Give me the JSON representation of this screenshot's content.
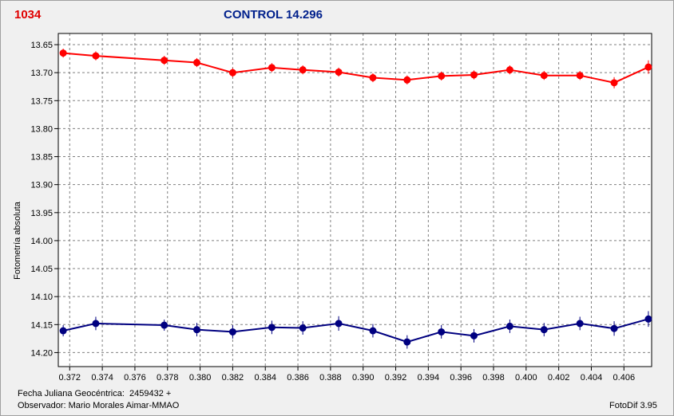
{
  "header": {
    "object_id": "1034",
    "title": "CONTROL 14.296"
  },
  "footer": {
    "julian_date_label": "Fecha Juliana Geocéntrica:  2459432 +",
    "observer_label": "Observador: Mario Morales Aimar-MMAO",
    "software": "FotoDif 3.95"
  },
  "colors": {
    "series_red": "#ff0000",
    "series_blue": "#000080",
    "object_id": "#e00000",
    "title": "#00208c"
  },
  "chart_data": {
    "type": "line",
    "title": "CONTROL 14.296",
    "xlabel": "",
    "ylabel": "Fotometría absoluta",
    "y_inverted": true,
    "xlim": [
      0.3713,
      0.4077
    ],
    "ylim": [
      13.63,
      14.225
    ],
    "grid": true,
    "x_ticks": [
      "0.372",
      "0.374",
      "0.376",
      "0.378",
      "0.380",
      "0.382",
      "0.384",
      "0.386",
      "0.388",
      "0.390",
      "0.392",
      "0.394",
      "0.396",
      "0.398",
      "0.400",
      "0.402",
      "0.404",
      "0.406"
    ],
    "y_ticks": [
      "13.65",
      "13.70",
      "13.75",
      "13.80",
      "13.85",
      "13.90",
      "13.95",
      "14.00",
      "14.05",
      "14.10",
      "14.15",
      "14.20"
    ],
    "series": [
      {
        "x": [
          0.3716,
          0.3736,
          0.3778,
          0.3798,
          0.382,
          0.3844,
          0.3863,
          0.3885,
          0.3906,
          0.3927,
          0.3948,
          0.3968,
          0.399,
          0.4011,
          0.4033,
          0.4054,
          0.4075
        ],
        "y": [
          13.665,
          13.67,
          13.678,
          13.682,
          13.7,
          13.691,
          13.695,
          13.699,
          13.709,
          13.713,
          13.706,
          13.704,
          13.695,
          13.705,
          13.705,
          13.718,
          13.69
        ],
        "err": [
          0.008,
          0.008,
          0.008,
          0.008,
          0.008,
          0.008,
          0.008,
          0.008,
          0.008,
          0.008,
          0.008,
          0.008,
          0.008,
          0.008,
          0.008,
          0.01,
          0.012
        ]
      },
      {
        "x": [
          0.3716,
          0.3736,
          0.3778,
          0.3798,
          0.382,
          0.3844,
          0.3863,
          0.3885,
          0.3906,
          0.3927,
          0.3948,
          0.3968,
          0.399,
          0.4011,
          0.4033,
          0.4054,
          0.4075
        ],
        "y": [
          14.161,
          14.148,
          14.151,
          14.159,
          14.163,
          14.155,
          14.156,
          14.148,
          14.161,
          14.181,
          14.163,
          14.17,
          14.153,
          14.159,
          14.148,
          14.157,
          14.14
        ],
        "err": [
          0.01,
          0.012,
          0.01,
          0.012,
          0.012,
          0.012,
          0.012,
          0.013,
          0.012,
          0.012,
          0.012,
          0.012,
          0.012,
          0.012,
          0.012,
          0.013,
          0.014
        ]
      }
    ]
  }
}
